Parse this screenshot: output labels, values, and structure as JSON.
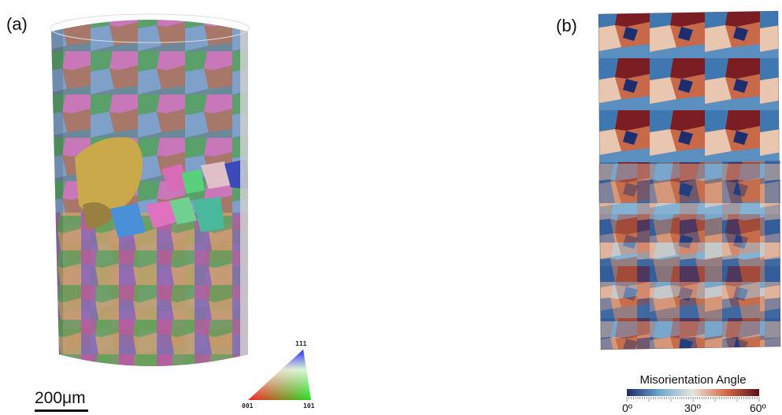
{
  "panels": {
    "a_label": "(a)",
    "b_label": "(b)"
  },
  "scale_bar": {
    "text": "200μm"
  },
  "ipf_key": {
    "top": "111",
    "left": "001",
    "right": "101"
  },
  "colorbar": {
    "title": "Misorientation Angle",
    "ticks": [
      "0º",
      "30º",
      "60º"
    ],
    "colors": {
      "low": "#1a2a6c",
      "mid": "#e8e4de",
      "high": "#5a0f1c"
    }
  }
}
